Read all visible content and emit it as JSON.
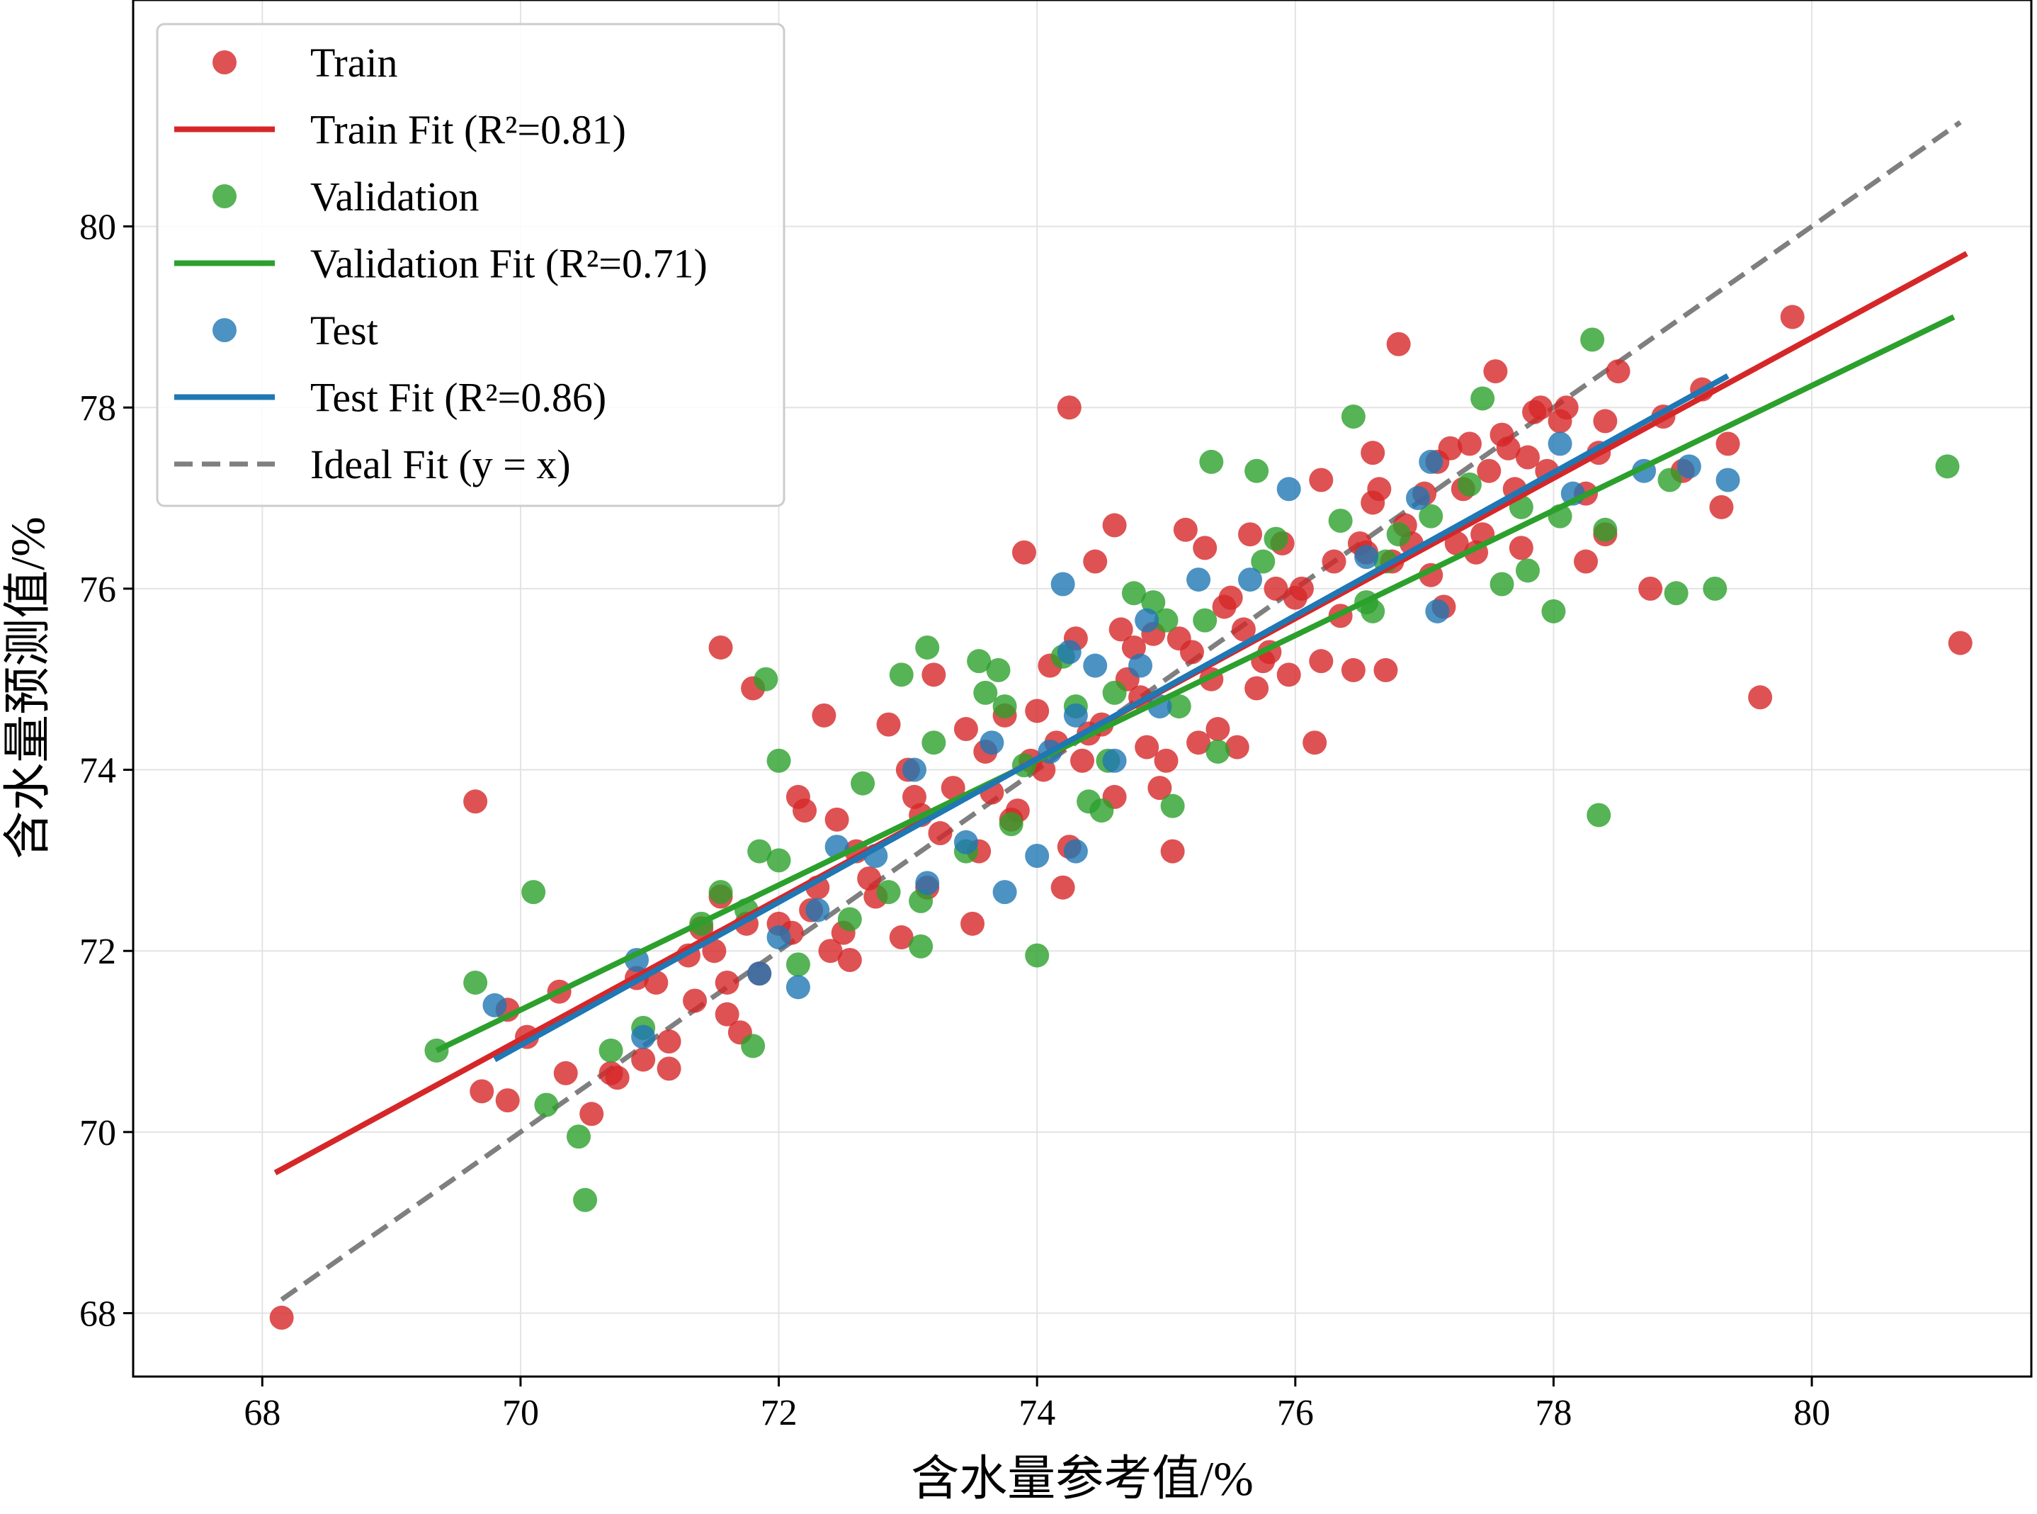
{
  "chart_data": {
    "type": "scatter",
    "xlabel": "含水量参考值/%",
    "ylabel": "含水量预测值/%",
    "xlim": [
      67.0,
      81.7
    ],
    "ylim": [
      67.3,
      82.5
    ],
    "xticks": [
      68,
      70,
      72,
      74,
      76,
      78,
      80
    ],
    "yticks": [
      68,
      70,
      72,
      74,
      76,
      78,
      80
    ],
    "grid": true,
    "legend_position": "top-left",
    "colors": {
      "train": "#d62728",
      "validation": "#2ca02c",
      "test": "#1f77b4",
      "ideal": "#7f7f7f"
    },
    "legend": [
      {
        "id": "train",
        "label": "Train",
        "kind": "marker"
      },
      {
        "id": "train_fit",
        "label": "Train Fit (R²=0.81)",
        "kind": "line"
      },
      {
        "id": "validation",
        "label": "Validation",
        "kind": "marker"
      },
      {
        "id": "validation_fit",
        "label": "Validation Fit (R²=0.71)",
        "kind": "line"
      },
      {
        "id": "test",
        "label": "Test",
        "kind": "marker"
      },
      {
        "id": "test_fit",
        "label": "Test Fit (R²=0.86)",
        "kind": "line"
      },
      {
        "id": "ideal",
        "label": "Ideal Fit (y = x)",
        "kind": "dashed"
      }
    ],
    "fit_lines": [
      {
        "id": "train_fit",
        "series": "train",
        "r2": 0.81,
        "x": [
          68.1,
          81.2
        ],
        "y": [
          69.55,
          79.7
        ]
      },
      {
        "id": "validation_fit",
        "series": "validation",
        "r2": 0.71,
        "x": [
          69.35,
          81.1
        ],
        "y": [
          70.9,
          79.0
        ]
      },
      {
        "id": "test_fit",
        "series": "test",
        "r2": 0.86,
        "x": [
          69.8,
          79.35
        ],
        "y": [
          70.8,
          78.35
        ]
      },
      {
        "id": "ideal",
        "series": "ideal",
        "x": [
          68.15,
          81.15
        ],
        "y": [
          68.15,
          81.15
        ]
      }
    ],
    "series": [
      {
        "name": "Train",
        "points": [
          [
            68.15,
            67.95
          ],
          [
            69.65,
            73.65
          ],
          [
            69.7,
            70.45
          ],
          [
            69.9,
            71.35
          ],
          [
            69.9,
            70.35
          ],
          [
            70.05,
            71.05
          ],
          [
            70.3,
            71.55
          ],
          [
            70.35,
            70.65
          ],
          [
            70.55,
            70.2
          ],
          [
            70.7,
            70.65
          ],
          [
            70.75,
            70.6
          ],
          [
            70.9,
            71.7
          ],
          [
            70.95,
            70.8
          ],
          [
            71.05,
            71.65
          ],
          [
            71.15,
            70.7
          ],
          [
            71.15,
            71.0
          ],
          [
            71.3,
            71.95
          ],
          [
            71.35,
            71.45
          ],
          [
            71.4,
            72.25
          ],
          [
            71.5,
            72.0
          ],
          [
            71.55,
            72.6
          ],
          [
            71.55,
            75.35
          ],
          [
            71.6,
            71.3
          ],
          [
            71.6,
            71.65
          ],
          [
            71.7,
            71.1
          ],
          [
            71.75,
            72.3
          ],
          [
            71.8,
            74.9
          ],
          [
            71.85,
            71.75
          ],
          [
            72.0,
            72.3
          ],
          [
            72.1,
            72.2
          ],
          [
            72.15,
            73.7
          ],
          [
            72.2,
            73.55
          ],
          [
            72.25,
            72.45
          ],
          [
            72.3,
            72.7
          ],
          [
            72.35,
            74.6
          ],
          [
            72.4,
            72.0
          ],
          [
            72.45,
            73.45
          ],
          [
            72.5,
            72.2
          ],
          [
            72.55,
            71.9
          ],
          [
            72.6,
            73.1
          ],
          [
            72.7,
            72.8
          ],
          [
            72.75,
            72.6
          ],
          [
            72.85,
            74.5
          ],
          [
            72.95,
            72.15
          ],
          [
            73.0,
            74.0
          ],
          [
            73.05,
            73.7
          ],
          [
            73.1,
            73.5
          ],
          [
            73.15,
            72.7
          ],
          [
            73.2,
            75.05
          ],
          [
            73.25,
            73.3
          ],
          [
            73.35,
            73.8
          ],
          [
            73.45,
            74.45
          ],
          [
            73.5,
            72.3
          ],
          [
            73.55,
            73.1
          ],
          [
            73.6,
            74.2
          ],
          [
            73.65,
            73.75
          ],
          [
            73.75,
            74.6
          ],
          [
            73.8,
            73.45
          ],
          [
            73.85,
            73.55
          ],
          [
            73.9,
            76.4
          ],
          [
            73.95,
            74.1
          ],
          [
            74.0,
            74.65
          ],
          [
            74.05,
            74.0
          ],
          [
            74.1,
            75.15
          ],
          [
            74.15,
            74.3
          ],
          [
            74.2,
            72.7
          ],
          [
            74.25,
            73.15
          ],
          [
            74.25,
            78.0
          ],
          [
            74.3,
            75.45
          ],
          [
            74.35,
            74.1
          ],
          [
            74.4,
            74.4
          ],
          [
            74.45,
            76.3
          ],
          [
            74.5,
            74.5
          ],
          [
            74.6,
            76.7
          ],
          [
            74.6,
            73.7
          ],
          [
            74.65,
            75.55
          ],
          [
            74.7,
            75.0
          ],
          [
            74.75,
            75.35
          ],
          [
            74.8,
            74.8
          ],
          [
            74.85,
            74.25
          ],
          [
            74.9,
            75.5
          ],
          [
            74.95,
            73.8
          ],
          [
            75.0,
            74.1
          ],
          [
            75.05,
            73.1
          ],
          [
            75.1,
            75.45
          ],
          [
            75.15,
            76.65
          ],
          [
            75.2,
            75.3
          ],
          [
            75.25,
            74.3
          ],
          [
            75.3,
            76.45
          ],
          [
            75.35,
            75.0
          ],
          [
            75.4,
            74.45
          ],
          [
            75.45,
            75.8
          ],
          [
            75.5,
            75.9
          ],
          [
            75.55,
            74.25
          ],
          [
            75.6,
            75.55
          ],
          [
            75.65,
            76.6
          ],
          [
            75.7,
            74.9
          ],
          [
            75.75,
            75.2
          ],
          [
            75.8,
            75.3
          ],
          [
            75.85,
            76.0
          ],
          [
            75.9,
            76.5
          ],
          [
            75.95,
            75.05
          ],
          [
            76.0,
            75.9
          ],
          [
            76.05,
            76.0
          ],
          [
            76.15,
            74.3
          ],
          [
            76.2,
            75.2
          ],
          [
            76.2,
            77.2
          ],
          [
            76.3,
            76.3
          ],
          [
            76.35,
            75.7
          ],
          [
            76.45,
            75.1
          ],
          [
            76.5,
            76.5
          ],
          [
            76.55,
            76.4
          ],
          [
            76.6,
            77.5
          ],
          [
            76.6,
            76.95
          ],
          [
            76.65,
            77.1
          ],
          [
            76.7,
            75.1
          ],
          [
            76.75,
            76.3
          ],
          [
            76.8,
            78.7
          ],
          [
            76.85,
            76.7
          ],
          [
            76.9,
            76.5
          ],
          [
            77.0,
            77.05
          ],
          [
            77.05,
            76.15
          ],
          [
            77.1,
            77.4
          ],
          [
            77.15,
            75.8
          ],
          [
            77.2,
            77.55
          ],
          [
            77.25,
            76.5
          ],
          [
            77.3,
            77.1
          ],
          [
            77.35,
            77.6
          ],
          [
            77.4,
            76.4
          ],
          [
            77.45,
            76.6
          ],
          [
            77.5,
            77.3
          ],
          [
            77.55,
            78.4
          ],
          [
            77.6,
            77.7
          ],
          [
            77.65,
            77.55
          ],
          [
            77.7,
            77.1
          ],
          [
            77.75,
            76.45
          ],
          [
            77.8,
            77.45
          ],
          [
            77.85,
            77.95
          ],
          [
            77.9,
            78.0
          ],
          [
            77.95,
            77.3
          ],
          [
            78.05,
            77.85
          ],
          [
            78.1,
            78.0
          ],
          [
            78.25,
            77.05
          ],
          [
            78.25,
            76.3
          ],
          [
            78.35,
            77.5
          ],
          [
            78.4,
            77.85
          ],
          [
            78.4,
            76.6
          ],
          [
            78.5,
            78.4
          ],
          [
            78.75,
            76.0
          ],
          [
            78.85,
            77.9
          ],
          [
            79.0,
            77.3
          ],
          [
            79.15,
            78.2
          ],
          [
            79.3,
            76.9
          ],
          [
            79.35,
            77.6
          ],
          [
            79.6,
            74.8
          ],
          [
            79.85,
            79.0
          ],
          [
            81.15,
            75.4
          ]
        ]
      },
      {
        "name": "Validation",
        "points": [
          [
            69.35,
            70.9
          ],
          [
            69.65,
            71.65
          ],
          [
            70.1,
            72.65
          ],
          [
            70.2,
            70.3
          ],
          [
            70.45,
            69.95
          ],
          [
            70.5,
            69.25
          ],
          [
            70.7,
            70.9
          ],
          [
            70.95,
            71.15
          ],
          [
            71.4,
            72.3
          ],
          [
            71.55,
            72.65
          ],
          [
            71.75,
            72.45
          ],
          [
            71.8,
            70.95
          ],
          [
            71.85,
            73.1
          ],
          [
            71.9,
            75.0
          ],
          [
            72.0,
            74.1
          ],
          [
            72.0,
            73.0
          ],
          [
            72.15,
            71.85
          ],
          [
            72.55,
            72.35
          ],
          [
            72.65,
            73.85
          ],
          [
            72.85,
            72.65
          ],
          [
            72.95,
            75.05
          ],
          [
            73.1,
            72.55
          ],
          [
            73.1,
            72.05
          ],
          [
            73.15,
            75.35
          ],
          [
            73.2,
            74.3
          ],
          [
            73.45,
            73.1
          ],
          [
            73.55,
            75.2
          ],
          [
            73.6,
            74.85
          ],
          [
            73.7,
            75.1
          ],
          [
            73.75,
            74.7
          ],
          [
            73.8,
            73.4
          ],
          [
            73.9,
            74.05
          ],
          [
            74.0,
            71.95
          ],
          [
            74.2,
            75.25
          ],
          [
            74.3,
            74.7
          ],
          [
            74.4,
            73.65
          ],
          [
            74.5,
            73.55
          ],
          [
            74.55,
            74.1
          ],
          [
            74.6,
            74.85
          ],
          [
            74.75,
            75.95
          ],
          [
            74.9,
            75.85
          ],
          [
            75.0,
            75.65
          ],
          [
            75.05,
            73.6
          ],
          [
            75.1,
            74.7
          ],
          [
            75.3,
            75.65
          ],
          [
            75.35,
            77.4
          ],
          [
            75.4,
            74.2
          ],
          [
            75.7,
            77.3
          ],
          [
            75.75,
            76.3
          ],
          [
            75.85,
            76.55
          ],
          [
            76.35,
            76.75
          ],
          [
            76.45,
            77.9
          ],
          [
            76.55,
            75.85
          ],
          [
            76.6,
            75.75
          ],
          [
            76.7,
            76.3
          ],
          [
            76.8,
            76.6
          ],
          [
            77.05,
            76.8
          ],
          [
            77.35,
            77.15
          ],
          [
            77.45,
            78.1
          ],
          [
            77.6,
            76.05
          ],
          [
            77.75,
            76.9
          ],
          [
            77.8,
            76.2
          ],
          [
            78.0,
            75.75
          ],
          [
            78.05,
            76.8
          ],
          [
            78.3,
            78.75
          ],
          [
            78.35,
            73.5
          ],
          [
            78.4,
            76.65
          ],
          [
            78.9,
            77.2
          ],
          [
            78.95,
            75.95
          ],
          [
            79.25,
            76.0
          ],
          [
            81.05,
            77.35
          ]
        ]
      },
      {
        "name": "Test",
        "points": [
          [
            69.8,
            71.4
          ],
          [
            70.9,
            71.9
          ],
          [
            70.95,
            71.05
          ],
          [
            71.85,
            71.75
          ],
          [
            72.0,
            72.15
          ],
          [
            72.15,
            71.6
          ],
          [
            72.3,
            72.45
          ],
          [
            72.45,
            73.15
          ],
          [
            72.75,
            73.05
          ],
          [
            73.05,
            74.0
          ],
          [
            73.15,
            72.75
          ],
          [
            73.45,
            73.2
          ],
          [
            73.65,
            74.3
          ],
          [
            73.75,
            72.65
          ],
          [
            74.0,
            73.05
          ],
          [
            74.1,
            74.2
          ],
          [
            74.2,
            76.05
          ],
          [
            74.25,
            75.3
          ],
          [
            74.3,
            74.6
          ],
          [
            74.3,
            73.1
          ],
          [
            74.45,
            75.15
          ],
          [
            74.6,
            74.1
          ],
          [
            74.8,
            75.15
          ],
          [
            74.85,
            75.65
          ],
          [
            74.95,
            74.7
          ],
          [
            75.25,
            76.1
          ],
          [
            75.65,
            76.1
          ],
          [
            75.95,
            77.1
          ],
          [
            76.55,
            76.35
          ],
          [
            76.95,
            77.0
          ],
          [
            77.05,
            77.4
          ],
          [
            77.1,
            75.75
          ],
          [
            78.05,
            77.6
          ],
          [
            78.15,
            77.05
          ],
          [
            78.7,
            77.3
          ],
          [
            79.05,
            77.35
          ],
          [
            79.35,
            77.2
          ]
        ]
      }
    ]
  }
}
